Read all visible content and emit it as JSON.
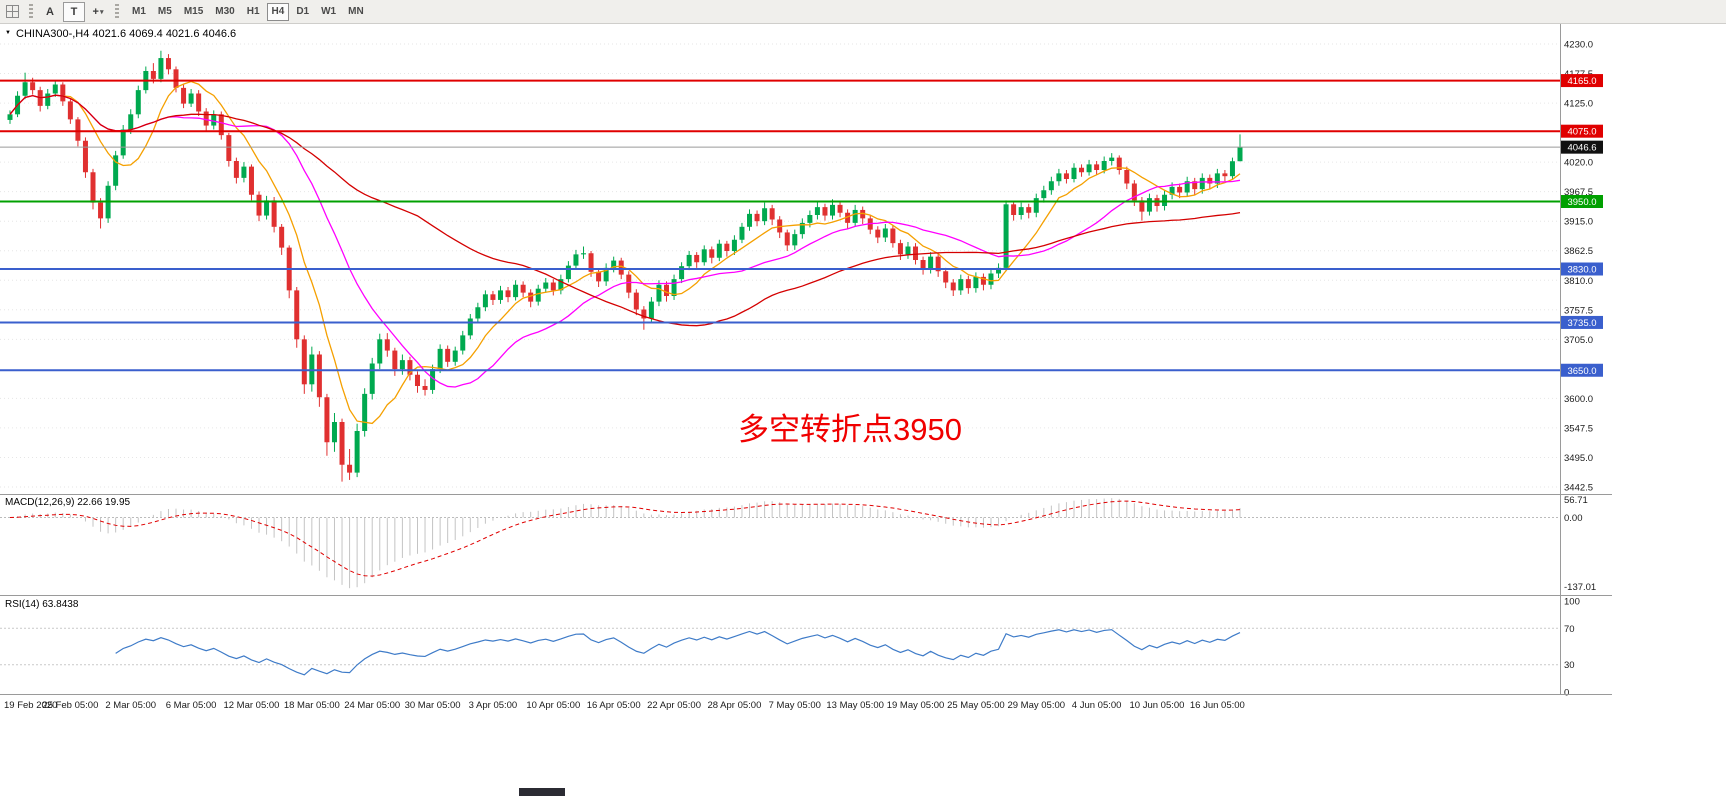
{
  "toolbar": {
    "tool_a_label": "A",
    "tool_t_label": "T",
    "timeframes": [
      "M1",
      "M5",
      "M15",
      "M30",
      "H1",
      "H4",
      "D1",
      "W1",
      "MN"
    ],
    "active_timeframe": "H4"
  },
  "icons": {
    "expand_arrow": "▼",
    "dropdown_caret": "▾",
    "crosshair": "+"
  },
  "chart": {
    "title_line": "CHINA300-,H4 4021.6 4069.4 4021.6 4046.6",
    "annotation": {
      "text": "多空转折点3950",
      "color": "#F00000"
    }
  },
  "chart_data": {
    "type": "candlestick",
    "symbol": "CHINA300-",
    "timeframe": "H4",
    "ohlc_display": {
      "open": "4021.6",
      "high": "4069.4",
      "low": "4021.6",
      "close": "4046.6"
    },
    "candle_colors": {
      "up": "#00A94F",
      "down": "#E03030"
    },
    "bars_per_label": 8,
    "x_labels": [
      "19 Feb 2020",
      "25 Feb 05:00",
      "2 Mar 05:00",
      "6 Mar 05:00",
      "12 Mar 05:00",
      "18 Mar 05:00",
      "24 Mar 05:00",
      "30 Mar 05:00",
      "3 Apr 05:00",
      "10 Apr 05:00",
      "16 Apr 05:00",
      "22 Apr 05:00",
      "28 Apr 05:00",
      "7 May 05:00",
      "13 May 05:00",
      "19 May 05:00",
      "25 May 05:00",
      "29 May 05:00",
      "4 Jun 05:00",
      "10 Jun 05:00",
      "16 Jun 05:00"
    ],
    "price_axis_ticks": [
      "4230.0",
      "4177.5",
      "4125.0",
      "4020.0",
      "3967.5",
      "3915.0",
      "3862.5",
      "3810.0",
      "3757.5",
      "3705.0",
      "3600.0",
      "3547.5",
      "3495.0",
      "3442.5"
    ],
    "hlines": [
      {
        "price": 4165.0,
        "color": "#E00000",
        "badge": "4165.0"
      },
      {
        "price": 4075.0,
        "color": "#E00000",
        "badge": "4075.0"
      },
      {
        "price": 3950.0,
        "color": "#00A000",
        "badge": "3950.0"
      },
      {
        "price": 3830.0,
        "color": "#3A5FCD",
        "badge": "3830.0"
      },
      {
        "price": 3735.0,
        "color": "#3A5FCD",
        "badge": "3735.0"
      },
      {
        "price": 3650.0,
        "color": "#3A5FCD",
        "badge": "3650.0"
      }
    ],
    "current_price": {
      "value": 4046.6,
      "badge": "4046.6"
    },
    "moving_averages": [
      {
        "period": 8,
        "color": "#F5A000"
      },
      {
        "period": 21,
        "color": "#FF00FF"
      },
      {
        "period": 55,
        "color": "#D40000"
      }
    ],
    "indicators": {
      "macd": {
        "label": "MACD(12,26,9) 22.66 19.95",
        "params": [
          12,
          26,
          9
        ],
        "values_display": [
          "22.66",
          "19.95"
        ],
        "scale": [
          "56.71",
          "0.00",
          "-137.01"
        ],
        "histogram_color": "#C4C4C4",
        "signal_color": "#E00000"
      },
      "rsi": {
        "label": "RSI(14) 63.8438",
        "period": 14,
        "value_display": "63.8438",
        "scale": [
          "100",
          "70",
          "30",
          "0"
        ],
        "levels": [
          70,
          30
        ],
        "line_color": "#3E7BC8"
      }
    },
    "candles": [
      [
        4095,
        4112,
        4088,
        4105
      ],
      [
        4105,
        4146,
        4100,
        4138
      ],
      [
        4138,
        4179,
        4132,
        4162
      ],
      [
        4162,
        4170,
        4140,
        4148
      ],
      [
        4148,
        4154,
        4110,
        4120
      ],
      [
        4120,
        4150,
        4114,
        4142
      ],
      [
        4142,
        4166,
        4136,
        4158
      ],
      [
        4158,
        4162,
        4120,
        4128
      ],
      [
        4128,
        4133,
        4088,
        4096
      ],
      [
        4096,
        4100,
        4048,
        4058
      ],
      [
        4058,
        4064,
        3992,
        4002
      ],
      [
        4002,
        4008,
        3936,
        3948
      ],
      [
        3948,
        3956,
        3902,
        3920
      ],
      [
        3920,
        3986,
        3912,
        3978
      ],
      [
        3978,
        4040,
        3970,
        4032
      ],
      [
        4032,
        4086,
        4026,
        4078
      ],
      [
        4078,
        4114,
        4070,
        4105
      ],
      [
        4105,
        4156,
        4098,
        4148
      ],
      [
        4148,
        4190,
        4142,
        4182
      ],
      [
        4182,
        4196,
        4160,
        4168
      ],
      [
        4168,
        4218,
        4162,
        4205
      ],
      [
        4205,
        4212,
        4176,
        4185
      ],
      [
        4185,
        4190,
        4144,
        4152
      ],
      [
        4152,
        4158,
        4116,
        4124
      ],
      [
        4124,
        4150,
        4118,
        4142
      ],
      [
        4142,
        4148,
        4102,
        4110
      ],
      [
        4110,
        4116,
        4076,
        4085
      ],
      [
        4085,
        4112,
        4078,
        4105
      ],
      [
        4105,
        4110,
        4060,
        4068
      ],
      [
        4068,
        4072,
        4012,
        4022
      ],
      [
        4022,
        4028,
        3982,
        3992
      ],
      [
        3992,
        4020,
        3984,
        4012
      ],
      [
        4012,
        4016,
        3952,
        3962
      ],
      [
        3962,
        3968,
        3915,
        3925
      ],
      [
        3925,
        3960,
        3918,
        3952
      ],
      [
        3952,
        3958,
        3895,
        3905
      ],
      [
        3905,
        3910,
        3855,
        3868
      ],
      [
        3868,
        3872,
        3778,
        3792
      ],
      [
        3792,
        3798,
        3690,
        3705
      ],
      [
        3705,
        3712,
        3608,
        3625
      ],
      [
        3625,
        3692,
        3612,
        3678
      ],
      [
        3678,
        3684,
        3585,
        3602
      ],
      [
        3602,
        3608,
        3498,
        3522
      ],
      [
        3522,
        3574,
        3505,
        3558
      ],
      [
        3558,
        3564,
        3452,
        3482
      ],
      [
        3482,
        3510,
        3455,
        3468
      ],
      [
        3468,
        3555,
        3460,
        3542
      ],
      [
        3542,
        3618,
        3532,
        3608
      ],
      [
        3608,
        3672,
        3598,
        3662
      ],
      [
        3662,
        3715,
        3652,
        3705
      ],
      [
        3705,
        3716,
        3674,
        3685
      ],
      [
        3685,
        3690,
        3640,
        3652
      ],
      [
        3652,
        3678,
        3642,
        3668
      ],
      [
        3668,
        3674,
        3632,
        3642
      ],
      [
        3642,
        3648,
        3610,
        3622
      ],
      [
        3622,
        3634,
        3605,
        3615
      ],
      [
        3615,
        3660,
        3608,
        3652
      ],
      [
        3652,
        3696,
        3645,
        3688
      ],
      [
        3688,
        3694,
        3656,
        3665
      ],
      [
        3665,
        3692,
        3658,
        3685
      ],
      [
        3685,
        3720,
        3678,
        3712
      ],
      [
        3712,
        3750,
        3705,
        3742
      ],
      [
        3742,
        3770,
        3735,
        3762
      ],
      [
        3762,
        3792,
        3755,
        3785
      ],
      [
        3785,
        3791,
        3766,
        3775
      ],
      [
        3775,
        3800,
        3768,
        3792
      ],
      [
        3792,
        3798,
        3771,
        3780
      ],
      [
        3780,
        3810,
        3774,
        3802
      ],
      [
        3802,
        3808,
        3780,
        3788
      ],
      [
        3788,
        3794,
        3762,
        3772
      ],
      [
        3772,
        3802,
        3765,
        3795
      ],
      [
        3795,
        3814,
        3788,
        3806
      ],
      [
        3806,
        3812,
        3783,
        3792
      ],
      [
        3792,
        3820,
        3785,
        3812
      ],
      [
        3812,
        3844,
        3806,
        3836
      ],
      [
        3836,
        3864,
        3830,
        3856
      ],
      [
        3856,
        3870,
        3848,
        3858
      ],
      [
        3858,
        3862,
        3816,
        3825
      ],
      [
        3825,
        3830,
        3798,
        3808
      ],
      [
        3808,
        3840,
        3800,
        3832
      ],
      [
        3832,
        3852,
        3824,
        3845
      ],
      [
        3845,
        3850,
        3812,
        3820
      ],
      [
        3820,
        3826,
        3778,
        3788
      ],
      [
        3788,
        3794,
        3748,
        3758
      ],
      [
        3758,
        3764,
        3722,
        3742
      ],
      [
        3742,
        3780,
        3734,
        3772
      ],
      [
        3772,
        3810,
        3764,
        3802
      ],
      [
        3802,
        3808,
        3772,
        3782
      ],
      [
        3782,
        3820,
        3775,
        3812
      ],
      [
        3812,
        3842,
        3805,
        3835
      ],
      [
        3835,
        3862,
        3828,
        3855
      ],
      [
        3855,
        3860,
        3832,
        3842
      ],
      [
        3842,
        3872,
        3836,
        3865
      ],
      [
        3865,
        3870,
        3840,
        3850
      ],
      [
        3850,
        3882,
        3844,
        3875
      ],
      [
        3875,
        3880,
        3852,
        3862
      ],
      [
        3862,
        3890,
        3855,
        3882
      ],
      [
        3882,
        3912,
        3876,
        3905
      ],
      [
        3905,
        3936,
        3898,
        3928
      ],
      [
        3928,
        3934,
        3906,
        3915
      ],
      [
        3915,
        3948,
        3908,
        3938
      ],
      [
        3938,
        3944,
        3908,
        3918
      ],
      [
        3918,
        3924,
        3885,
        3895
      ],
      [
        3895,
        3900,
        3862,
        3872
      ],
      [
        3872,
        3900,
        3864,
        3892
      ],
      [
        3892,
        3920,
        3884,
        3912
      ],
      [
        3912,
        3934,
        3904,
        3926
      ],
      [
        3926,
        3950,
        3918,
        3940
      ],
      [
        3940,
        3946,
        3916,
        3925
      ],
      [
        3925,
        3954,
        3918,
        3944
      ],
      [
        3944,
        3950,
        3922,
        3930
      ],
      [
        3930,
        3936,
        3902,
        3912
      ],
      [
        3912,
        3944,
        3905,
        3935
      ],
      [
        3935,
        3941,
        3910,
        3920
      ],
      [
        3920,
        3926,
        3892,
        3900
      ],
      [
        3900,
        3906,
        3876,
        3886
      ],
      [
        3886,
        3910,
        3878,
        3902
      ],
      [
        3902,
        3908,
        3868,
        3876
      ],
      [
        3876,
        3882,
        3846,
        3856
      ],
      [
        3856,
        3878,
        3848,
        3870
      ],
      [
        3870,
        3876,
        3838,
        3846
      ],
      [
        3846,
        3852,
        3820,
        3830
      ],
      [
        3830,
        3860,
        3822,
        3852
      ],
      [
        3852,
        3858,
        3816,
        3826
      ],
      [
        3826,
        3832,
        3796,
        3806
      ],
      [
        3806,
        3812,
        3782,
        3792
      ],
      [
        3792,
        3820,
        3784,
        3812
      ],
      [
        3812,
        3818,
        3786,
        3796
      ],
      [
        3796,
        3824,
        3788,
        3816
      ],
      [
        3816,
        3822,
        3792,
        3802
      ],
      [
        3802,
        3830,
        3794,
        3822
      ],
      [
        3822,
        3840,
        3814,
        3832
      ],
      [
        3832,
        3952,
        3826,
        3945
      ],
      [
        3945,
        3950,
        3916,
        3926
      ],
      [
        3926,
        3948,
        3918,
        3940
      ],
      [
        3940,
        3946,
        3920,
        3930
      ],
      [
        3930,
        3964,
        3922,
        3956
      ],
      [
        3956,
        3978,
        3948,
        3970
      ],
      [
        3970,
        3994,
        3962,
        3986
      ],
      [
        3986,
        4008,
        3978,
        4000
      ],
      [
        4000,
        4006,
        3982,
        3990
      ],
      [
        3990,
        4018,
        3984,
        4010
      ],
      [
        4010,
        4016,
        3994,
        4002
      ],
      [
        4002,
        4024,
        3996,
        4016
      ],
      [
        4016,
        4022,
        3998,
        4006
      ],
      [
        4006,
        4030,
        4000,
        4022
      ],
      [
        4022,
        4036,
        4014,
        4028
      ],
      [
        4028,
        4032,
        3998,
        4006
      ],
      [
        4006,
        4012,
        3972,
        3982
      ],
      [
        3982,
        3988,
        3942,
        3952
      ],
      [
        3952,
        3958,
        3916,
        3932
      ],
      [
        3932,
        3964,
        3925,
        3956
      ],
      [
        3956,
        3962,
        3932,
        3942
      ],
      [
        3942,
        3970,
        3934,
        3962
      ],
      [
        3962,
        3984,
        3954,
        3976
      ],
      [
        3976,
        3982,
        3956,
        3966
      ],
      [
        3966,
        3994,
        3958,
        3986
      ],
      [
        3986,
        3992,
        3962,
        3972
      ],
      [
        3972,
        4000,
        3964,
        3992
      ],
      [
        3992,
        3998,
        3972,
        3982
      ],
      [
        3982,
        4008,
        3974,
        4000
      ],
      [
        4000,
        4006,
        3986,
        3995
      ],
      [
        3995,
        4028,
        3990,
        4021.6
      ],
      [
        4021.6,
        4069.4,
        4021.6,
        4046.6
      ]
    ]
  }
}
